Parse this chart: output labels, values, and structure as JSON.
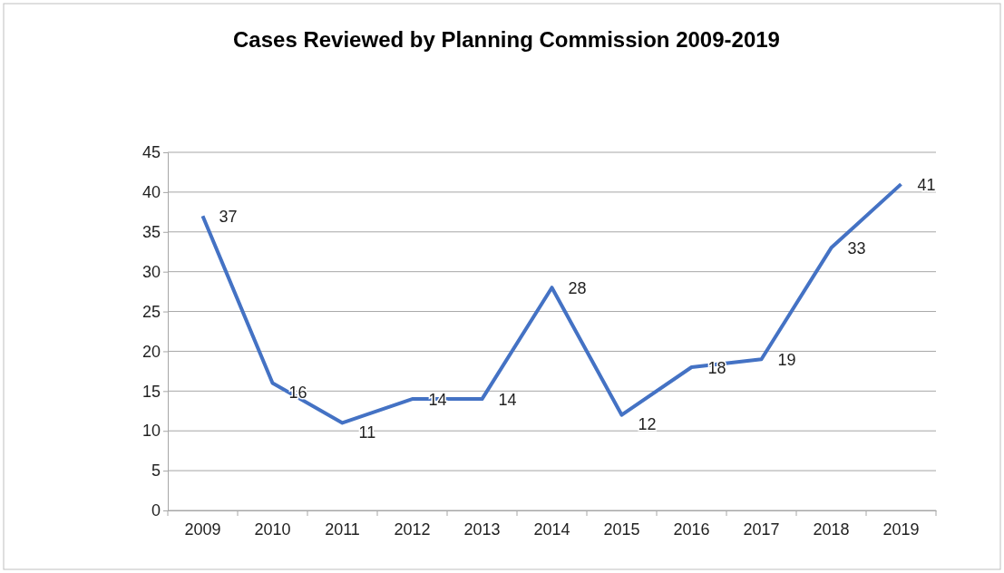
{
  "chart_data": {
    "type": "line",
    "title": "Cases Reviewed by Planning Commission 2009-2019",
    "categories": [
      "2009",
      "2010",
      "2011",
      "2012",
      "2013",
      "2014",
      "2015",
      "2016",
      "2017",
      "2018",
      "2019"
    ],
    "series": [
      {
        "color": "#4472c4",
        "values": [
          37,
          16,
          11,
          14,
          14,
          28,
          12,
          18,
          19,
          33,
          41
        ]
      }
    ],
    "ylim": [
      0,
      45
    ],
    "yticks": [
      0,
      5,
      10,
      15,
      20,
      25,
      30,
      35,
      40,
      45
    ],
    "grid": "y",
    "data_labels": true,
    "marker": "none",
    "line_style": "solid"
  }
}
